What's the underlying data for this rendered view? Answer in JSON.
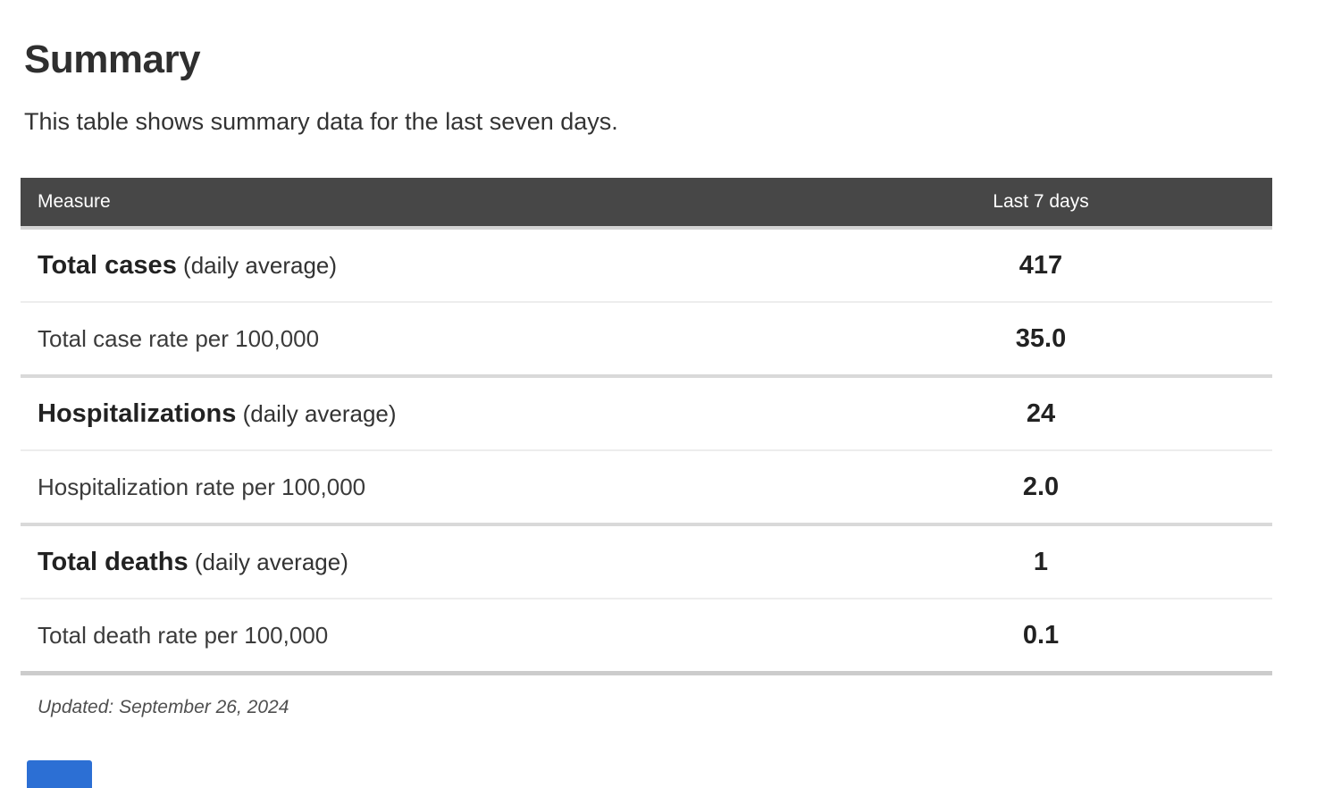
{
  "page": {
    "title": "Summary",
    "subtitle": "This table shows summary data for the last seven days.",
    "updated_note": "Updated: September 26, 2024"
  },
  "table": {
    "columns": [
      "Measure",
      "Last 7 days"
    ],
    "rows": [
      {
        "label": "Total cases",
        "suffix": "(daily average)",
        "value": "417",
        "bold": true,
        "group_end": false
      },
      {
        "label": "Total case rate per 100,000",
        "suffix": "",
        "value": "35.0",
        "bold": false,
        "group_end": true
      },
      {
        "label": "Hospitalizations",
        "suffix": "(daily average)",
        "value": "24",
        "bold": true,
        "group_end": false
      },
      {
        "label": "Hospitalization rate per 100,000",
        "suffix": "",
        "value": "2.0",
        "bold": false,
        "group_end": true
      },
      {
        "label": "Total deaths",
        "suffix": "(daily average)",
        "value": "1",
        "bold": true,
        "group_end": false
      },
      {
        "label": "Total death rate per 100,000",
        "suffix": "",
        "value": "0.1",
        "bold": false,
        "group_end": true
      }
    ]
  },
  "colors": {
    "header_bg": "#474747",
    "header_text": "#ffffff",
    "group_divider": "#d9d9d9",
    "row_divider": "#ededed",
    "accent_blue": "#2c6fd4"
  }
}
